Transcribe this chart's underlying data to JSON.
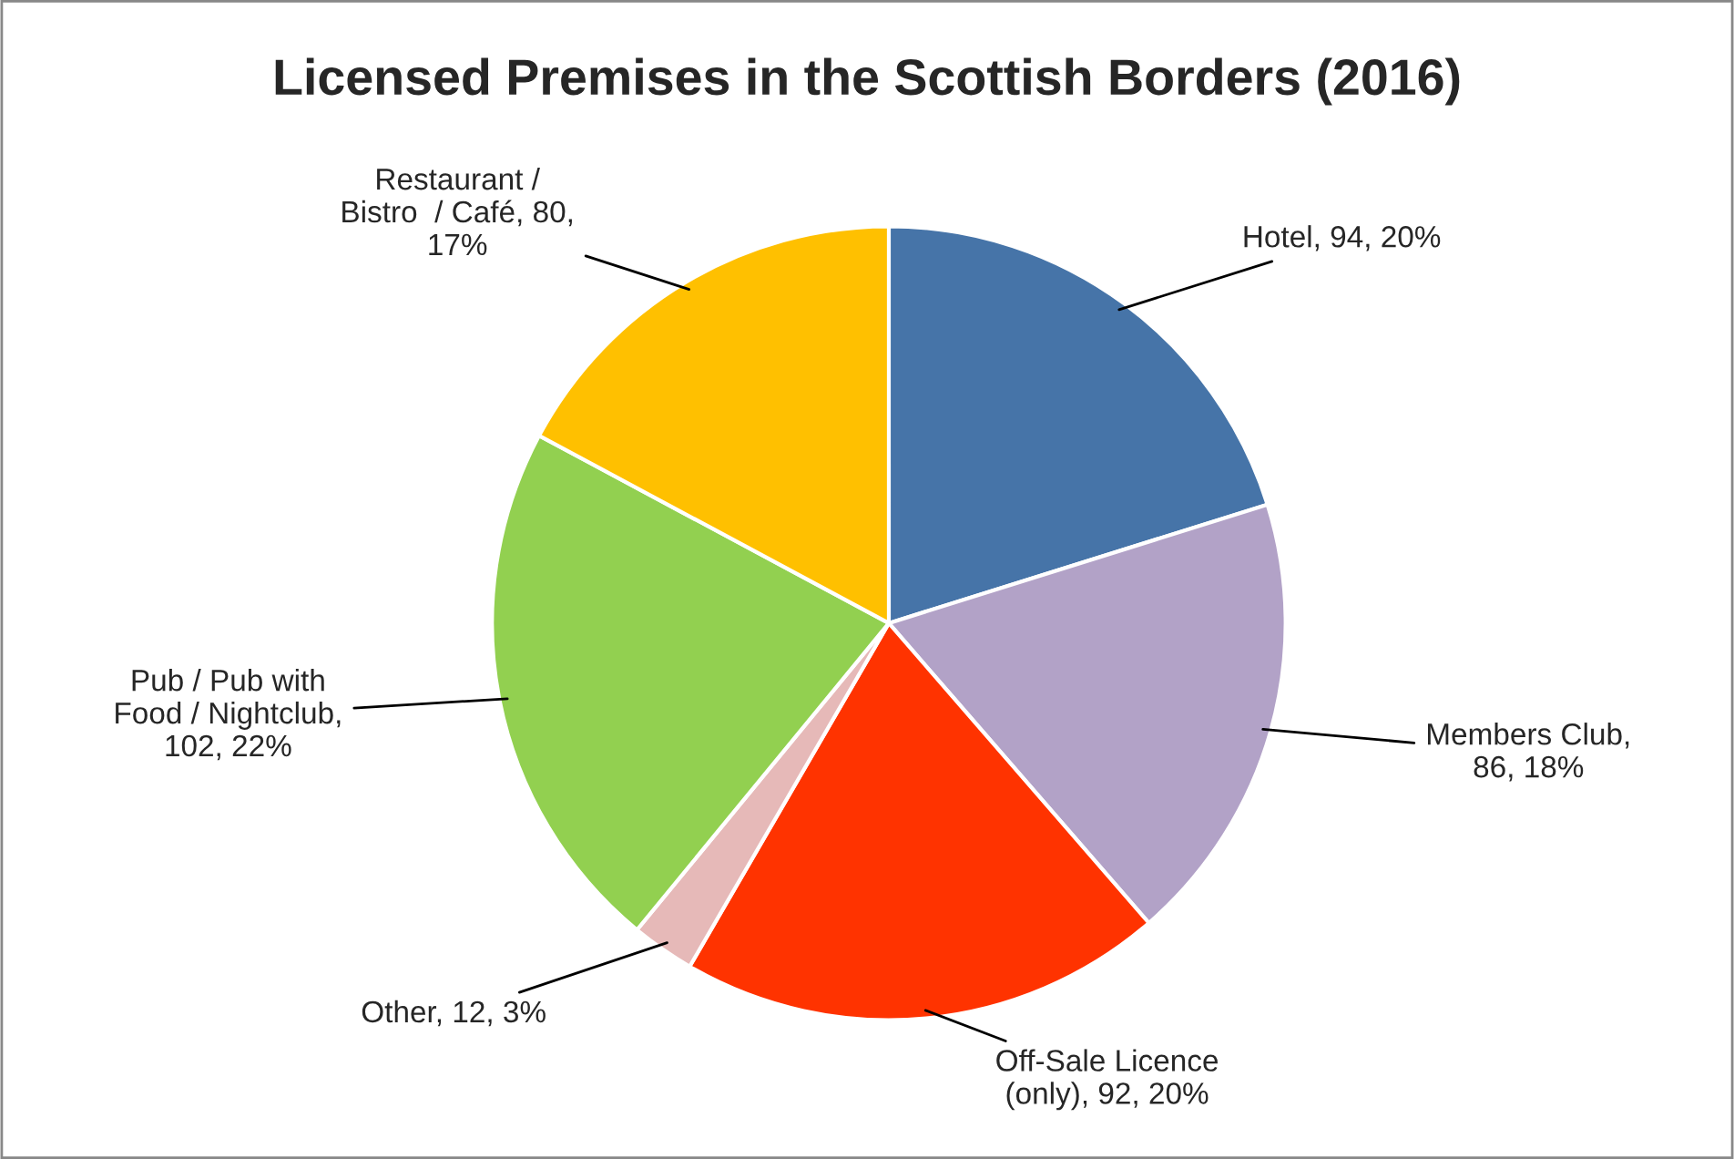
{
  "chart_data": {
    "type": "pie",
    "title": "Licensed Premises in the Scottish Borders (2016)",
    "categories": [
      "Hotel",
      "Members Club",
      "Off-Sale Licence\n(only)",
      "Other",
      "Pub / Pub with\nFood / Nightclub",
      "Restaurant /\nBistro  / Café"
    ],
    "values": [
      94,
      86,
      92,
      12,
      102,
      80
    ],
    "value_labels": [
      ", 94, 20%",
      ",\n86, 18%",
      ", 92, 20%",
      ", 12, 3%",
      ",\n102, 22%",
      ", 80,\n17%"
    ],
    "colors": [
      "#4674a8",
      "#b2a2c7",
      "#ff3300",
      "#e6b9b8",
      "#92d050",
      "#ffc000"
    ],
    "legend": false
  }
}
